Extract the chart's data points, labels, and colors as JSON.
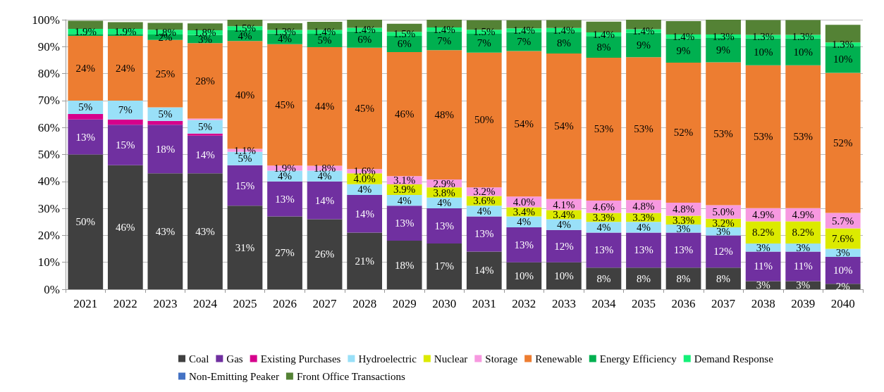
{
  "chart_data": {
    "type": "bar",
    "stacked": true,
    "categories": [
      "2021",
      "2022",
      "2023",
      "2024",
      "2025",
      "2026",
      "2027",
      "2028",
      "2029",
      "2030",
      "2031",
      "2032",
      "2033",
      "2034",
      "2035",
      "2036",
      "2037",
      "2038",
      "2039",
      "2040"
    ],
    "ylim": [
      0,
      100
    ],
    "yticks": [
      {
        "value": 0,
        "label": "0%"
      },
      {
        "value": 10,
        "label": "10%"
      },
      {
        "value": 20,
        "label": "20%"
      },
      {
        "value": 30,
        "label": "30%"
      },
      {
        "value": 40,
        "label": "40%"
      },
      {
        "value": 50,
        "label": "50%"
      },
      {
        "value": 60,
        "label": "60%"
      },
      {
        "value": 70,
        "label": "70%"
      },
      {
        "value": 80,
        "label": "80%"
      },
      {
        "value": 90,
        "label": "90%"
      },
      {
        "value": 100,
        "label": "100%"
      }
    ],
    "grid": "y",
    "legend": "bottom",
    "series": [
      {
        "name": "Coal",
        "color": "#404040",
        "values": [
          50,
          46,
          43,
          43,
          31,
          27,
          26,
          21,
          18,
          17,
          14,
          10,
          10,
          8,
          8,
          8,
          8,
          3,
          3,
          2
        ],
        "value_labels": [
          "50%",
          "46%",
          "43%",
          "43%",
          "31%",
          "27%",
          "26%",
          "21%",
          "18%",
          "17%",
          "14%",
          "10%",
          "10%",
          "8%",
          "8%",
          "8%",
          "8%",
          "3%",
          "3%",
          "2%"
        ]
      },
      {
        "name": "Gas",
        "color": "#7030a0",
        "values": [
          13,
          15,
          18,
          14,
          15,
          13,
          14,
          14,
          13,
          13,
          13,
          13,
          12,
          13,
          13,
          13,
          12,
          11,
          11,
          10
        ],
        "value_labels": [
          "13%",
          "15%",
          "18%",
          "14%",
          "15%",
          "13%",
          "14%",
          "14%",
          "13%",
          "13%",
          "13%",
          "13%",
          "12%",
          "13%",
          "13%",
          "13%",
          "12%",
          "11%",
          "11%",
          "10%"
        ]
      },
      {
        "name": "Existing Purchases",
        "color": "#d6008c",
        "values": [
          2,
          2,
          1.5,
          0.8,
          null,
          null,
          null,
          null,
          null,
          null,
          null,
          null,
          null,
          null,
          null,
          null,
          null,
          null,
          null,
          null
        ]
      },
      {
        "name": "Hydroelectric",
        "color": "#99e0f8",
        "values": [
          5,
          7,
          5,
          5,
          5,
          4,
          4,
          4,
          4,
          4,
          4,
          4,
          4,
          4,
          4,
          3,
          3,
          3,
          3,
          3
        ],
        "value_labels": [
          "5%",
          "7%",
          "5%",
          "5%",
          "5%",
          "4%",
          "4%",
          "4%",
          "4%",
          "4%",
          "4%",
          "4%",
          "4%",
          "4%",
          "4%",
          "3%",
          "3%",
          "3%",
          "3%",
          "3%"
        ]
      },
      {
        "name": "Nuclear",
        "color": "#dcea00",
        "values": [
          null,
          null,
          null,
          null,
          null,
          null,
          null,
          4.0,
          3.9,
          3.8,
          3.6,
          3.4,
          3.4,
          3.3,
          3.3,
          3.3,
          3.2,
          8.2,
          8.2,
          7.6
        ],
        "value_labels": [
          null,
          null,
          null,
          null,
          null,
          null,
          null,
          "4.0%",
          "3.9%",
          "3.8%",
          "3.6%",
          "3.4%",
          "3.4%",
          "3.3%",
          "3.3%",
          "3.3%",
          "3.2%",
          "8.2%",
          "8.2%",
          "7.6%"
        ]
      },
      {
        "name": "Storage",
        "color": "#f799e0",
        "values": [
          null,
          null,
          null,
          0.5,
          1.1,
          1.9,
          1.8,
          1.6,
          3.1,
          2.9,
          3.2,
          4.0,
          4.1,
          4.6,
          4.8,
          4.8,
          5.0,
          4.9,
          4.9,
          5.7
        ],
        "value_labels": [
          null,
          null,
          null,
          null,
          "1.1%",
          "1.9%",
          "1.8%",
          "1.6%",
          "3.1%",
          "2.9%",
          "3.2%",
          "4.0%",
          "4.1%",
          "4.6%",
          "4.8%",
          "4.8%",
          "5.0%",
          "4.9%",
          "4.9%",
          "5.7%"
        ]
      },
      {
        "name": "Renewable",
        "color": "#ed7d31",
        "values": [
          24,
          24,
          25,
          28,
          40,
          45,
          44,
          45,
          46,
          48,
          50,
          54,
          54,
          53,
          53,
          52,
          53,
          53,
          53,
          52
        ],
        "value_labels": [
          "24%",
          "24%",
          "25%",
          "28%",
          "40%",
          "45%",
          "44%",
          "45%",
          "46%",
          "48%",
          "50%",
          "54%",
          "54%",
          "53%",
          "53%",
          "52%",
          "53%",
          "53%",
          "53%",
          "52%"
        ]
      },
      {
        "name": "Energy Efficiency",
        "color": "#00b050",
        "values": [
          0.7,
          0.7,
          2,
          3,
          4,
          4,
          5,
          6,
          6,
          7,
          7,
          7,
          8,
          8,
          9,
          9,
          9,
          10,
          10,
          10
        ],
        "value_labels": [
          null,
          null,
          "2%",
          "3%",
          "4%",
          "4%",
          "5%",
          "6%",
          "6%",
          "7%",
          "7%",
          "7%",
          "8%",
          "8%",
          "9%",
          "9%",
          "9%",
          "10%",
          "10%",
          "10%"
        ]
      },
      {
        "name": "Demand Response",
        "color": "#14f078",
        "values": [
          1.9,
          1.9,
          1.8,
          1.8,
          1.5,
          1.3,
          1.4,
          1.4,
          1.5,
          1.4,
          1.5,
          1.4,
          1.4,
          1.4,
          1.4,
          1.4,
          1.3,
          1.3,
          1.3,
          1.3
        ],
        "value_labels": [
          "1.9%",
          "1.9%",
          "1.8%",
          "1.8%",
          "1.5%",
          "1.3%",
          "1.4%",
          "1.4%",
          "1.5%",
          "1.4%",
          "1.5%",
          "1.4%",
          "1.4%",
          "1.4%",
          "1.4%",
          "1.4%",
          "1.3%",
          "1.3%",
          "1.3%",
          "1.3%"
        ]
      },
      {
        "name": "Non-Emitting Peaker",
        "color": "#4472c4",
        "values": [
          null,
          null,
          null,
          null,
          null,
          null,
          null,
          null,
          null,
          null,
          null,
          null,
          null,
          null,
          null,
          null,
          null,
          null,
          null,
          null
        ]
      },
      {
        "name": "Front Office Transactions",
        "color": "#548235",
        "values": [
          3,
          2.5,
          2.5,
          2.5,
          2.4,
          2.5,
          3,
          3,
          3,
          2.9,
          3.5,
          3,
          3,
          4,
          3.5,
          5,
          5.5,
          5.5,
          5.5,
          6.5
        ]
      }
    ]
  }
}
